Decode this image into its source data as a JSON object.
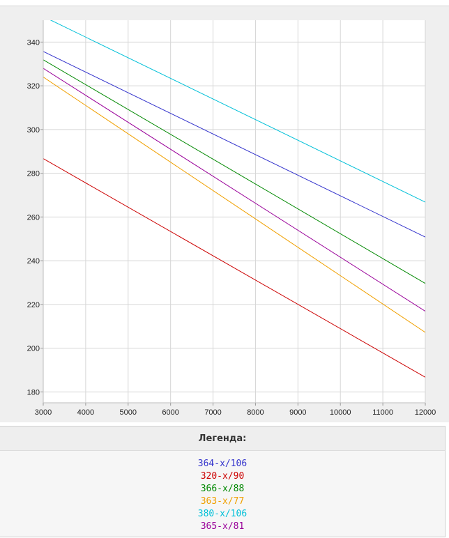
{
  "chart_data": {
    "type": "line",
    "xlim": [
      3000,
      12000
    ],
    "ylim": [
      175,
      350
    ],
    "x_ticks": [
      "3000",
      "4000",
      "5000",
      "6000",
      "7000",
      "8000",
      "9000",
      "10000",
      "11000",
      "12000"
    ],
    "y_ticks": [
      "180",
      "200",
      "220",
      "240",
      "260",
      "280",
      "300",
      "320",
      "340"
    ],
    "grid": true,
    "series": [
      {
        "name": "364-x/106",
        "color": "#3333cc",
        "x": [
          3000,
          12000
        ],
        "y": [
          335.7,
          250.8
        ]
      },
      {
        "name": "320-x/90",
        "color": "#cc0000",
        "x": [
          3000,
          12000
        ],
        "y": [
          286.7,
          186.7
        ]
      },
      {
        "name": "366-x/88",
        "color": "#008800",
        "x": [
          3000,
          12000
        ],
        "y": [
          331.9,
          229.6
        ]
      },
      {
        "name": "363-x/77",
        "color": "#f0a000",
        "x": [
          3000,
          12000
        ],
        "y": [
          324.0,
          207.2
        ]
      },
      {
        "name": "380-x/106",
        "color": "#00c0d8",
        "x": [
          3000,
          12000
        ],
        "y": [
          351.7,
          266.8
        ]
      },
      {
        "name": "365-x/81",
        "color": "#990099",
        "x": [
          3000,
          12000
        ],
        "y": [
          328.0,
          216.9
        ]
      }
    ]
  },
  "legend": {
    "title": "Легенда:"
  }
}
